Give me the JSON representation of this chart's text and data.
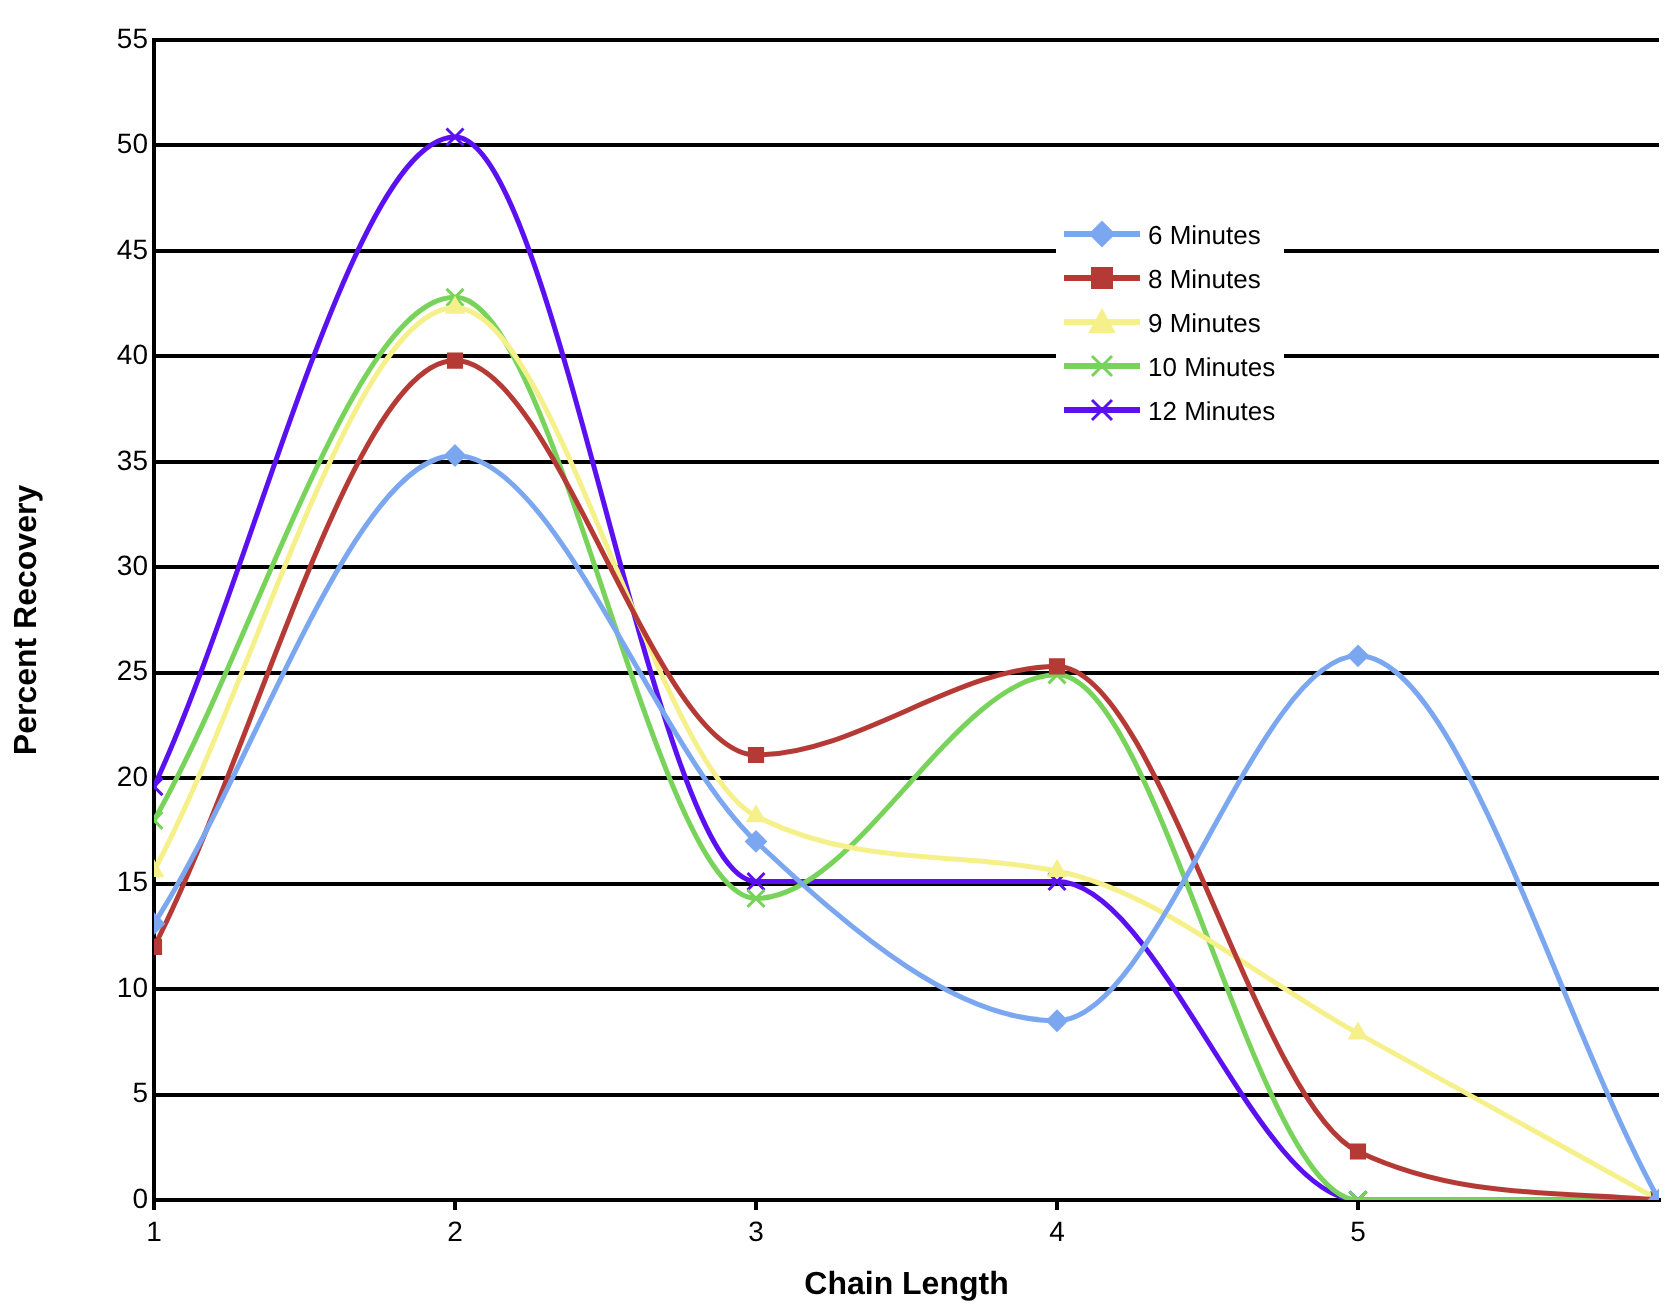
{
  "chart_data": {
    "type": "line",
    "xlabel": "Chain Length",
    "ylabel": "Percent Recovery",
    "x": [
      1,
      2,
      3,
      4,
      5,
      6
    ],
    "xlim": [
      1,
      6
    ],
    "xticks": [
      1,
      2,
      3,
      4,
      5
    ],
    "ylim": [
      0,
      55
    ],
    "yticks": [
      0,
      5,
      10,
      15,
      20,
      25,
      30,
      35,
      40,
      45,
      50,
      55
    ],
    "grid": "y",
    "legend": "top right",
    "line_style": "solid",
    "series": [
      {
        "name": "6 Minutes",
        "color": "#7ba7f0",
        "marker": "diamond",
        "values": [
          13.1,
          35.3,
          17,
          8.5,
          25.8,
          0
        ]
      },
      {
        "name": "8 Minutes",
        "color": "#b53a35",
        "marker": "square",
        "values": [
          12,
          39.8,
          21.1,
          25.3,
          2.3,
          0
        ]
      },
      {
        "name": "9 Minutes",
        "color": "#f5f08a",
        "marker": "triangle",
        "values": [
          15.6,
          42.3,
          18.2,
          15.6,
          7.9,
          0
        ]
      },
      {
        "name": "10 Minutes",
        "color": "#78d35a",
        "marker": "cross",
        "values": [
          18,
          42.8,
          14.3,
          24.9,
          0,
          0
        ]
      },
      {
        "name": "12 Minutes",
        "color": "#5a10f0",
        "marker": "cross",
        "values": [
          19.6,
          50.4,
          15.1,
          15.1,
          0,
          0
        ]
      }
    ]
  }
}
